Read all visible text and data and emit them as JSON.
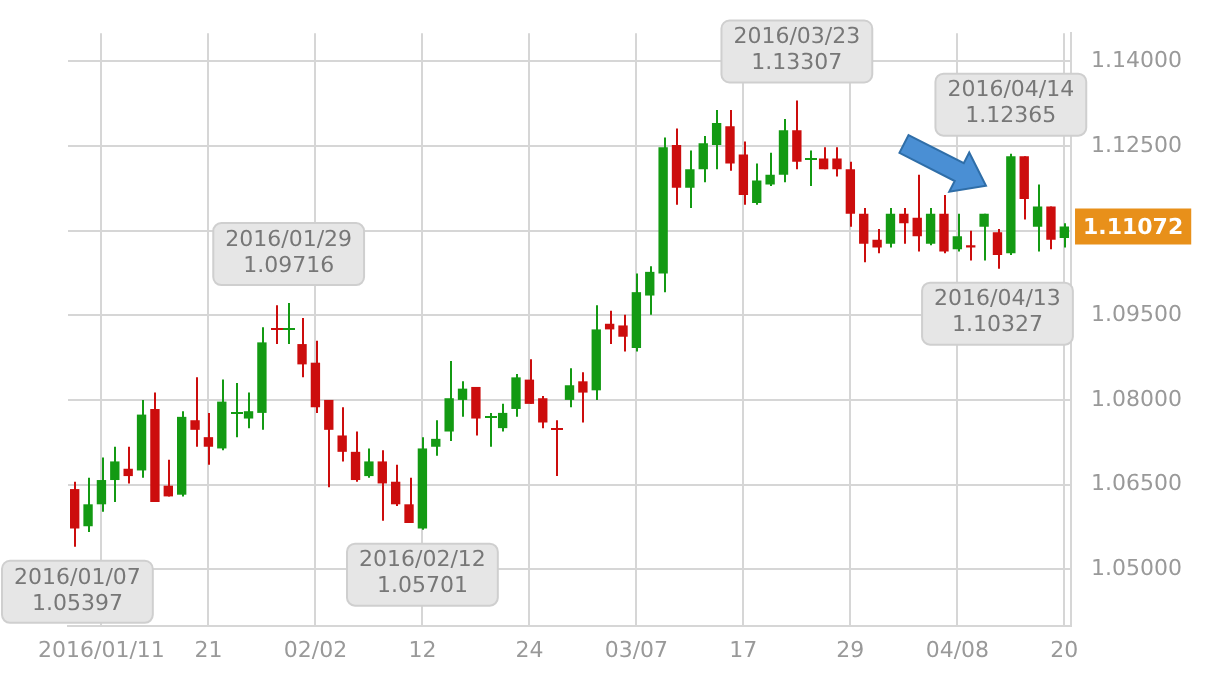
{
  "chart_data": {
    "type": "candlestick",
    "categories": [
      null,
      null,
      "2016/01/11",
      null,
      null,
      null,
      null,
      null,
      null,
      null,
      "21",
      null,
      null,
      null,
      null,
      null,
      null,
      null,
      "02/02",
      null,
      null,
      null,
      null,
      null,
      null,
      null,
      "12",
      null,
      null,
      null,
      null,
      null,
      null,
      null,
      "24",
      null,
      null,
      null,
      null,
      null,
      null,
      null,
      "03/07",
      null,
      null,
      null,
      null,
      null,
      null,
      null,
      "17",
      null,
      null,
      null,
      null,
      null,
      null,
      null,
      "29",
      null,
      null,
      null,
      null,
      null,
      null,
      null,
      "04/08",
      null,
      null,
      null,
      null,
      null,
      null,
      null,
      "20"
    ],
    "ohlc": [
      [
        1.0642,
        1.0655,
        1.05397,
        1.0572
      ],
      [
        1.0576,
        1.0662,
        1.0566,
        1.0615
      ],
      [
        1.0615,
        1.0698,
        1.0602,
        1.0658
      ],
      [
        1.0658,
        1.0717,
        1.0619,
        1.0691
      ],
      [
        1.0678,
        1.0717,
        1.0652,
        1.0665
      ],
      [
        1.0675,
        1.08,
        1.0662,
        1.0774
      ],
      [
        1.0784,
        1.0813,
        1.0619,
        1.0619
      ],
      [
        1.0648,
        1.0694,
        1.0629,
        1.0629
      ],
      [
        1.0632,
        1.078,
        1.0629,
        1.077
      ],
      [
        1.0764,
        1.084,
        1.0717,
        1.0747
      ],
      [
        1.0734,
        1.0777,
        1.0685,
        1.0717
      ],
      [
        1.0714,
        1.0836,
        1.0711,
        1.0797
      ],
      [
        1.078,
        1.083,
        1.0734,
        1.078
      ],
      [
        1.0767,
        1.0813,
        1.075,
        1.078
      ],
      [
        1.0777,
        1.0929,
        1.0747,
        1.0902
      ],
      [
        1.0929,
        1.0968,
        1.0899,
        1.0929
      ],
      [
        1.0929,
        1.09716,
        1.0899,
        1.0929
      ],
      [
        1.0899,
        1.0945,
        1.084,
        1.0863
      ],
      [
        1.0866,
        1.0905,
        1.0777,
        1.0787
      ],
      [
        1.08,
        1.08,
        1.0645,
        1.0747
      ],
      [
        1.0737,
        1.0787,
        1.0691,
        1.0708
      ],
      [
        1.0708,
        1.0744,
        1.0655,
        1.0658
      ],
      [
        1.0665,
        1.0714,
        1.0662,
        1.0691
      ],
      [
        1.0691,
        1.0711,
        1.0586,
        1.0652
      ],
      [
        1.0655,
        1.0685,
        1.0612,
        1.0615
      ],
      [
        1.0615,
        1.0662,
        1.0582,
        1.0582
      ],
      [
        1.0572,
        1.0734,
        1.05701,
        1.0714
      ],
      [
        1.0717,
        1.0764,
        1.0701,
        1.0731
      ],
      [
        1.0744,
        1.0869,
        1.0727,
        1.0803
      ],
      [
        1.08,
        1.0833,
        1.077,
        1.082
      ],
      [
        1.0823,
        1.0823,
        1.0737,
        1.0767
      ],
      [
        1.077,
        1.0777,
        1.0717,
        1.077
      ],
      [
        1.075,
        1.0793,
        1.0744,
        1.0777
      ],
      [
        1.0784,
        1.0846,
        1.077,
        1.084
      ],
      [
        1.0836,
        1.0872,
        1.0793,
        1.0793
      ],
      [
        1.0803,
        1.0807,
        1.075,
        1.076
      ],
      [
        1.075,
        1.0764,
        1.0665,
        1.075
      ],
      [
        1.08,
        1.0856,
        1.0787,
        1.0826
      ],
      [
        1.0833,
        1.0849,
        1.076,
        1.0813
      ],
      [
        1.0817,
        1.0968,
        1.08,
        1.0925
      ],
      [
        1.0935,
        1.0958,
        1.0899,
        1.0925
      ],
      [
        1.0932,
        1.0951,
        1.0886,
        1.0912
      ],
      [
        1.0892,
        1.1024,
        1.0886,
        1.0991
      ],
      [
        1.0985,
        1.1037,
        1.0951,
        1.1027
      ],
      [
        1.1024,
        1.1265,
        1.0991,
        1.1248
      ],
      [
        1.1252,
        1.1281,
        1.1146,
        1.1176
      ],
      [
        1.1176,
        1.1242,
        1.114,
        1.1209
      ],
      [
        1.1209,
        1.1268,
        1.1186,
        1.1255
      ],
      [
        1.1252,
        1.1314,
        1.1209,
        1.1291
      ],
      [
        1.1285,
        1.1314,
        1.1206,
        1.1219
      ],
      [
        1.1235,
        1.1258,
        1.1146,
        1.1163
      ],
      [
        1.1149,
        1.1219,
        1.1146,
        1.1189
      ],
      [
        1.1182,
        1.1238,
        1.1179,
        1.1199
      ],
      [
        1.1199,
        1.1298,
        1.1186,
        1.1278
      ],
      [
        1.1278,
        1.13307,
        1.1209,
        1.1222
      ],
      [
        1.1228,
        1.1242,
        1.1179,
        1.1228
      ],
      [
        1.1228,
        1.1248,
        1.1209,
        1.1209
      ],
      [
        1.1228,
        1.1248,
        1.1196,
        1.1209
      ],
      [
        1.1209,
        1.1222,
        1.1107,
        1.113
      ],
      [
        1.113,
        1.114,
        1.1044,
        1.1077
      ],
      [
        1.1084,
        1.1103,
        1.106,
        1.107
      ],
      [
        1.1077,
        1.114,
        1.107,
        1.113
      ],
      [
        1.113,
        1.114,
        1.1077,
        1.1113
      ],
      [
        1.1123,
        1.1199,
        1.1063,
        1.109
      ],
      [
        1.1077,
        1.114,
        1.1074,
        1.113
      ],
      [
        1.113,
        1.1163,
        1.106,
        1.1063
      ],
      [
        1.1067,
        1.113,
        1.1063,
        1.109
      ],
      [
        1.1074,
        1.11,
        1.1047,
        1.107
      ],
      [
        1.1107,
        1.113,
        1.1047,
        1.113
      ],
      [
        1.1097,
        1.1103,
        1.10327,
        1.1057
      ],
      [
        1.106,
        1.12365,
        1.1057,
        1.1232
      ],
      [
        1.1232,
        1.1232,
        1.112,
        1.1156
      ],
      [
        1.1107,
        1.1182,
        1.1063,
        1.1143
      ],
      [
        1.1143,
        1.1143,
        1.1067,
        1.1084
      ],
      [
        1.1087,
        1.1113,
        1.107,
        1.11072
      ]
    ],
    "colors": [
      "#cc0d0d",
      "#139a13",
      "#139a13",
      "#139a13",
      "#cc0d0d",
      "#139a13",
      "#cc0d0d",
      "#cc0d0d",
      "#139a13",
      "#cc0d0d",
      "#cc0d0d",
      "#139a13",
      "#139a13",
      "#139a13",
      "#139a13",
      "#cc0d0d",
      "#139a13",
      "#cc0d0d",
      "#cc0d0d",
      "#cc0d0d",
      "#cc0d0d",
      "#cc0d0d",
      "#139a13",
      "#cc0d0d",
      "#cc0d0d",
      "#cc0d0d",
      "#139a13",
      "#139a13",
      "#139a13",
      "#139a13",
      "#cc0d0d",
      "#139a13",
      "#139a13",
      "#139a13",
      "#cc0d0d",
      "#cc0d0d",
      "#cc0d0d",
      "#139a13",
      "#cc0d0d",
      "#139a13",
      "#cc0d0d",
      "#cc0d0d",
      "#139a13",
      "#139a13",
      "#139a13",
      "#cc0d0d",
      "#139a13",
      "#139a13",
      "#139a13",
      "#cc0d0d",
      "#cc0d0d",
      "#139a13",
      "#139a13",
      "#139a13",
      "#cc0d0d",
      "#139a13",
      "#cc0d0d",
      "#cc0d0d",
      "#cc0d0d",
      "#cc0d0d",
      "#cc0d0d",
      "#139a13",
      "#cc0d0d",
      "#cc0d0d",
      "#139a13",
      "#cc0d0d",
      "#139a13",
      "#cc0d0d",
      "#139a13",
      "#cc0d0d",
      "#139a13",
      "#cc0d0d",
      "#139a13",
      "#cc0d0d",
      "#139a13"
    ],
    "ylim": [
      1.04,
      1.145
    ],
    "yticks": [
      {
        "value": 1.05,
        "label": "1.05000"
      },
      {
        "value": 1.065,
        "label": "1.06500"
      },
      {
        "value": 1.08,
        "label": "1.08000"
      },
      {
        "value": 1.095,
        "label": "1.09500"
      },
      {
        "value": 1.11,
        "label": null
      },
      {
        "value": 1.125,
        "label": "1.12500"
      },
      {
        "value": 1.14,
        "label": "1.14000"
      }
    ],
    "grid": true,
    "annotations": [
      "1.11072",
      {
        "text": "2016/01/07\n1.05397",
        "y": 1.05397
      },
      {
        "text": "2016/01/29\n1.09716",
        "y": 1.09716
      },
      {
        "text": "2016/02/12\n1.05701",
        "y": 1.05701
      },
      {
        "text": "2016/03/23\n1.13307",
        "y": 1.13307
      },
      {
        "text": "2016/04/14\n1.12365",
        "y": 1.12365
      },
      {
        "text": "2016/04/13\n1.10327",
        "y": 1.10327
      }
    ]
  }
}
